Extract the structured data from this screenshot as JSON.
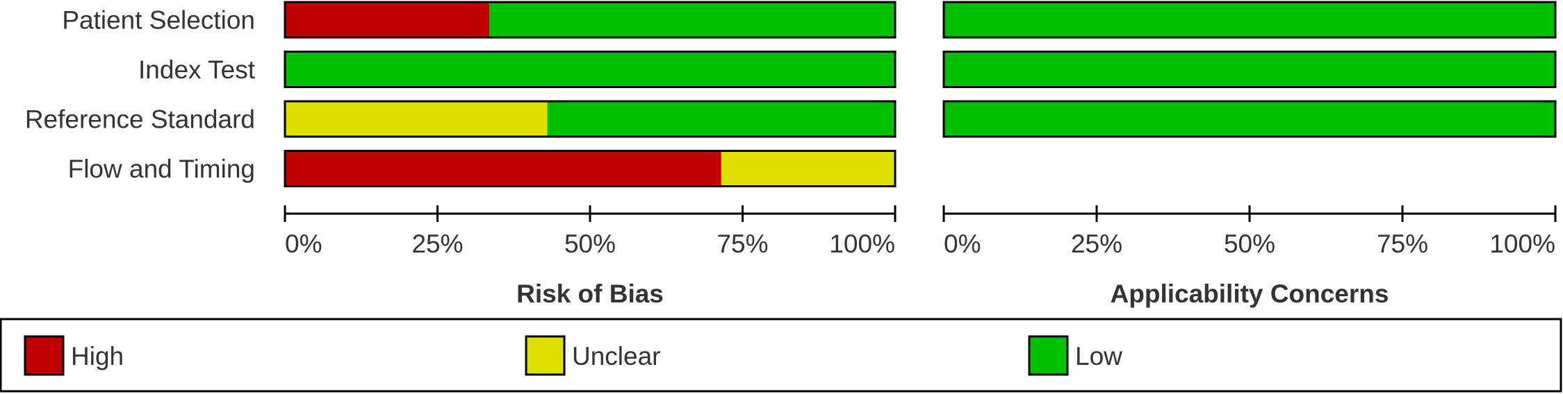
{
  "chart_data": [
    {
      "type": "bar",
      "orientation": "horizontal",
      "stacked": true,
      "title": "Risk of Bias",
      "categories": [
        "Patient Selection",
        "Index Test",
        "Reference Standard",
        "Flow and Timing"
      ],
      "series": [
        {
          "name": "High",
          "color": "#c00000",
          "values": [
            33.5,
            0,
            0,
            71.5
          ]
        },
        {
          "name": "Unclear",
          "color": "#e0e000",
          "values": [
            0,
            0,
            43,
            28.5
          ]
        },
        {
          "name": "Low",
          "color": "#00c000",
          "values": [
            66.5,
            100,
            57,
            0
          ]
        }
      ],
      "xlim": [
        0,
        100
      ],
      "xticks": [
        {
          "value": 0,
          "label": "0%"
        },
        {
          "value": 25,
          "label": "25%"
        },
        {
          "value": 50,
          "label": "50%"
        },
        {
          "value": 75,
          "label": "75%"
        },
        {
          "value": 100,
          "label": "100%"
        }
      ]
    },
    {
      "type": "bar",
      "orientation": "horizontal",
      "stacked": true,
      "title": "Applicability Concerns",
      "series": [
        {
          "color": "#00c000",
          "values": [
            100,
            100,
            100,
            null
          ]
        }
      ],
      "xlim": [
        0,
        100
      ],
      "xticks": [
        {
          "value": 0,
          "label": "0%"
        },
        {
          "value": 25,
          "label": "25%"
        },
        {
          "value": 50,
          "label": "50%"
        },
        {
          "value": 75,
          "label": "75%"
        },
        {
          "value": 100,
          "label": "100%"
        }
      ]
    }
  ]
}
